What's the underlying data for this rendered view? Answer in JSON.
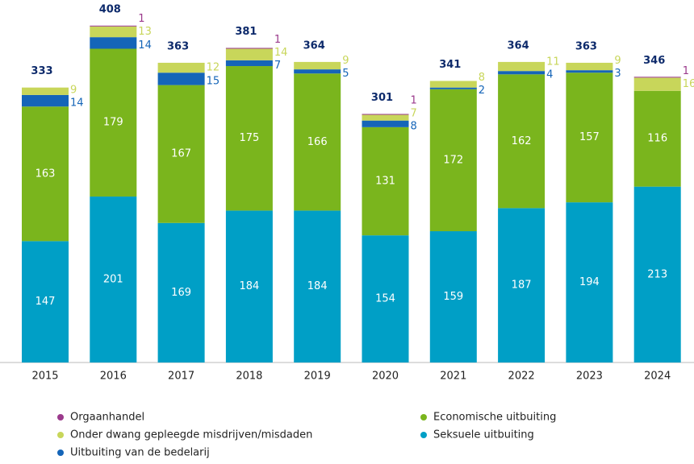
{
  "chart_data": {
    "type": "stacked_bar",
    "categories": [
      "2015",
      "2016",
      "2017",
      "2018",
      "2019",
      "2020",
      "2021",
      "2022",
      "2023",
      "2024"
    ],
    "totals": [
      333,
      408,
      363,
      381,
      364,
      301,
      341,
      364,
      363,
      346
    ],
    "series": [
      {
        "name": "Seksuele uitbuiting",
        "color": "#009fc6",
        "values": [
          147,
          201,
          169,
          184,
          184,
          154,
          159,
          187,
          194,
          213
        ]
      },
      {
        "name": "Economische uitbuiting",
        "color": "#7ab51d",
        "values": [
          163,
          179,
          167,
          175,
          166,
          131,
          172,
          162,
          157,
          116
        ]
      },
      {
        "name": "Uitbuiting van de bedelarij",
        "color": "#1565b8",
        "values": [
          14,
          14,
          15,
          7,
          5,
          8,
          2,
          4,
          3,
          null
        ]
      },
      {
        "name": "Onder dwang gepleegde misdrijven/misdaden",
        "color": "#c8d65a",
        "values": [
          9,
          13,
          12,
          14,
          9,
          7,
          8,
          11,
          9,
          16
        ]
      },
      {
        "name": "Orgaanhandel",
        "color": "#9b3a8c",
        "values": [
          null,
          1,
          null,
          1,
          null,
          1,
          null,
          null,
          null,
          1
        ]
      }
    ]
  }
}
